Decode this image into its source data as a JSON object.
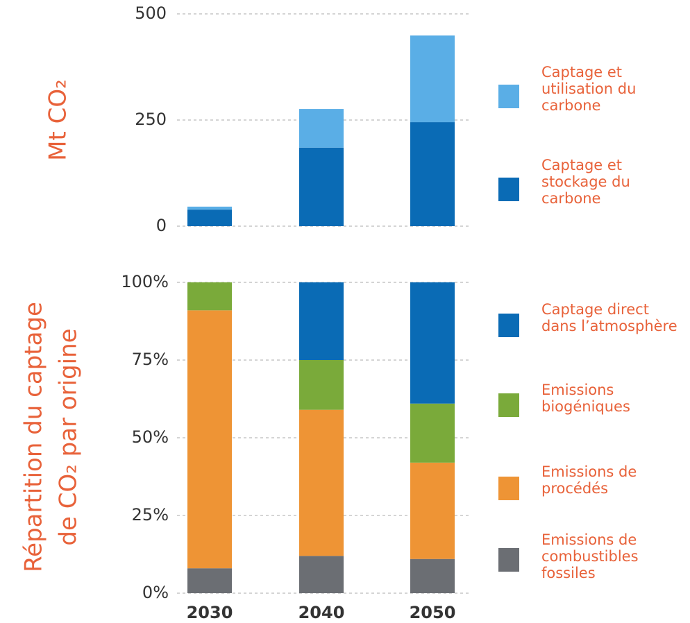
{
  "chart_data": [
    {
      "type": "bar",
      "stacked": true,
      "y_label": "Mt CO₂",
      "ylim": [
        0,
        500
      ],
      "yticks": [
        0,
        250,
        500
      ],
      "grid": true,
      "series": [
        {
          "name": "Captage et stockage du carbone",
          "color": "#0a6bb5",
          "values": [
            39,
            185,
            245
          ]
        },
        {
          "name": "Captage et utilisation du carbone",
          "color": "#5aaee6",
          "values": [
            7,
            91,
            204
          ]
        }
      ]
    },
    {
      "type": "bar",
      "stacked": true,
      "y_label": [
        "Répartition du captage",
        "de CO₂ par origine"
      ],
      "categories": [
        "2030",
        "2040",
        "2050"
      ],
      "ylim": [
        0,
        100
      ],
      "yticks": [
        {
          "value": 0,
          "label": "0%"
        },
        {
          "value": 25,
          "label": "25%"
        },
        {
          "value": 50,
          "label": "50%"
        },
        {
          "value": 75,
          "label": "75%"
        },
        {
          "value": 100,
          "label": "100%"
        }
      ],
      "grid": true,
      "series": [
        {
          "name": "Emissions de combustibles fossiles",
          "color": "#6b6e73",
          "values": [
            8,
            12,
            11
          ]
        },
        {
          "name": "Emissions de procédés",
          "color": "#ee9435",
          "values": [
            83,
            47,
            31
          ]
        },
        {
          "name": "Emissions biogéniques",
          "color": "#7aaa3a",
          "values": [
            9,
            16,
            19
          ]
        },
        {
          "name": "Captage direct dans l’atmosphère",
          "color": "#0a6bb5",
          "values": [
            0,
            25,
            39
          ]
        }
      ]
    }
  ]
}
